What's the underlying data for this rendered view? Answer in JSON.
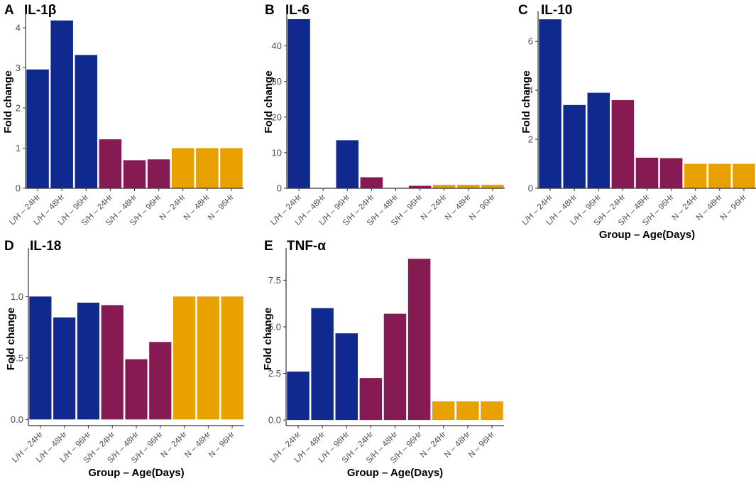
{
  "colors": {
    "L/H": "#10298f",
    "S/H": "#861a53",
    "N": "#e8a100"
  },
  "chart_data": [
    {
      "panel": "A",
      "title": "IL-1β",
      "type": "bar",
      "ylabel": "Fold change",
      "xlabel": "",
      "categories": [
        "L/H – 24Hr",
        "L/H – 48Hr",
        "L/H – 96Hr",
        "S/H – 24Hr",
        "S/H – 48Hr",
        "S/H – 96Hr",
        "N – 24Hr",
        "N – 48Hr",
        "N – 96Hr"
      ],
      "groups": [
        "L/H",
        "L/H",
        "L/H",
        "S/H",
        "S/H",
        "S/H",
        "N",
        "N",
        "N"
      ],
      "values": [
        2.96,
        4.18,
        3.32,
        1.22,
        0.7,
        0.72,
        1.0,
        1.0,
        1.0
      ],
      "ylim": [
        0,
        4.3
      ],
      "yticks": [
        0,
        1,
        2,
        3,
        4
      ],
      "ytick_labels": [
        "0",
        "1",
        "2",
        "3",
        "4"
      ]
    },
    {
      "panel": "B",
      "title": "IL-6",
      "type": "bar",
      "ylabel": "Fold change",
      "xlabel": "",
      "categories": [
        "L/H – 24Hr",
        "L/H – 48Hr",
        "L/H – 96Hr",
        "S/H – 24Hr",
        "S/H – 48Hr",
        "S/H – 96Hr",
        "N – 24Hr",
        "N – 48Hr",
        "N – 96Hr"
      ],
      "groups": [
        "L/H",
        "L/H",
        "L/H",
        "S/H",
        "S/H",
        "S/H",
        "N",
        "N",
        "N"
      ],
      "values": [
        47.5,
        0,
        13.5,
        3.1,
        0,
        0.7,
        1.0,
        1.0,
        1.0
      ],
      "ylim": [
        0,
        48.5
      ],
      "yticks": [
        0,
        10,
        20,
        30,
        40
      ],
      "ytick_labels": [
        "0",
        "10",
        "20",
        "30",
        "40"
      ]
    },
    {
      "panel": "C",
      "title": "IL-10",
      "type": "bar",
      "ylabel": "Fold change",
      "xlabel": "Group – Age(Days)",
      "categories": [
        "L/H – 24Hr",
        "L/H – 48Hr",
        "L/H – 96Hr",
        "S/H – 24Hr",
        "S/H – 48Hr",
        "S/H – 96Hr",
        "N – 24Hr",
        "N – 48Hr",
        "N – 96Hr"
      ],
      "groups": [
        "L/H",
        "L/H",
        "L/H",
        "S/H",
        "S/H",
        "S/H",
        "N",
        "N",
        "N"
      ],
      "values": [
        6.9,
        3.4,
        3.9,
        3.6,
        1.25,
        1.23,
        1.0,
        1.0,
        1.0
      ],
      "ylim": [
        0,
        7.05
      ],
      "yticks": [
        0,
        2,
        4,
        6
      ],
      "ytick_labels": [
        "0",
        "2",
        "4",
        "6"
      ]
    },
    {
      "panel": "D",
      "title": "IL-18",
      "type": "bar",
      "ylabel": "Fold change",
      "xlabel": "Group – Age(Days)",
      "categories": [
        "L/H – 24Hr",
        "L/H – 48Hr",
        "L/H – 96Hr",
        "S/H – 24Hr",
        "S/H – 48Hr",
        "S/H – 96Hr",
        "N – 24Hr",
        "N – 48Hr",
        "N – 96Hr"
      ],
      "groups": [
        "L/H",
        "L/H",
        "L/H",
        "S/H",
        "S/H",
        "S/H",
        "N",
        "N",
        "N"
      ],
      "values": [
        1.0,
        0.83,
        0.95,
        0.93,
        0.49,
        0.63,
        1.0,
        1.0,
        1.0
      ],
      "ylim": [
        -0.05,
        1.36
      ],
      "yticks": [
        0,
        0.5,
        1.0
      ],
      "ytick_labels": [
        "0.0",
        "0.5",
        "1.0"
      ]
    },
    {
      "panel": "E",
      "title": "TNF-α",
      "type": "bar",
      "ylabel": "Fold change",
      "xlabel": "Group – Age(Days)",
      "categories": [
        "L/H – 24Hr",
        "L/H – 48Hr",
        "L/H – 96Hr",
        "S/H – 24Hr",
        "S/H – 48Hr",
        "S/H – 96Hr",
        "N – 24Hr",
        "N – 48Hr",
        "N – 96Hr"
      ],
      "groups": [
        "L/H",
        "L/H",
        "L/H",
        "S/H",
        "S/H",
        "S/H",
        "N",
        "N",
        "N"
      ],
      "values": [
        2.6,
        6.0,
        4.65,
        2.25,
        5.7,
        8.65,
        1.0,
        1.0,
        1.0
      ],
      "ylim": [
        -0.3,
        9.0
      ],
      "yticks": [
        0,
        2.5,
        5.0,
        7.5
      ],
      "ytick_labels": [
        "0.0",
        "2.5",
        "5.0",
        "7.5"
      ]
    }
  ]
}
